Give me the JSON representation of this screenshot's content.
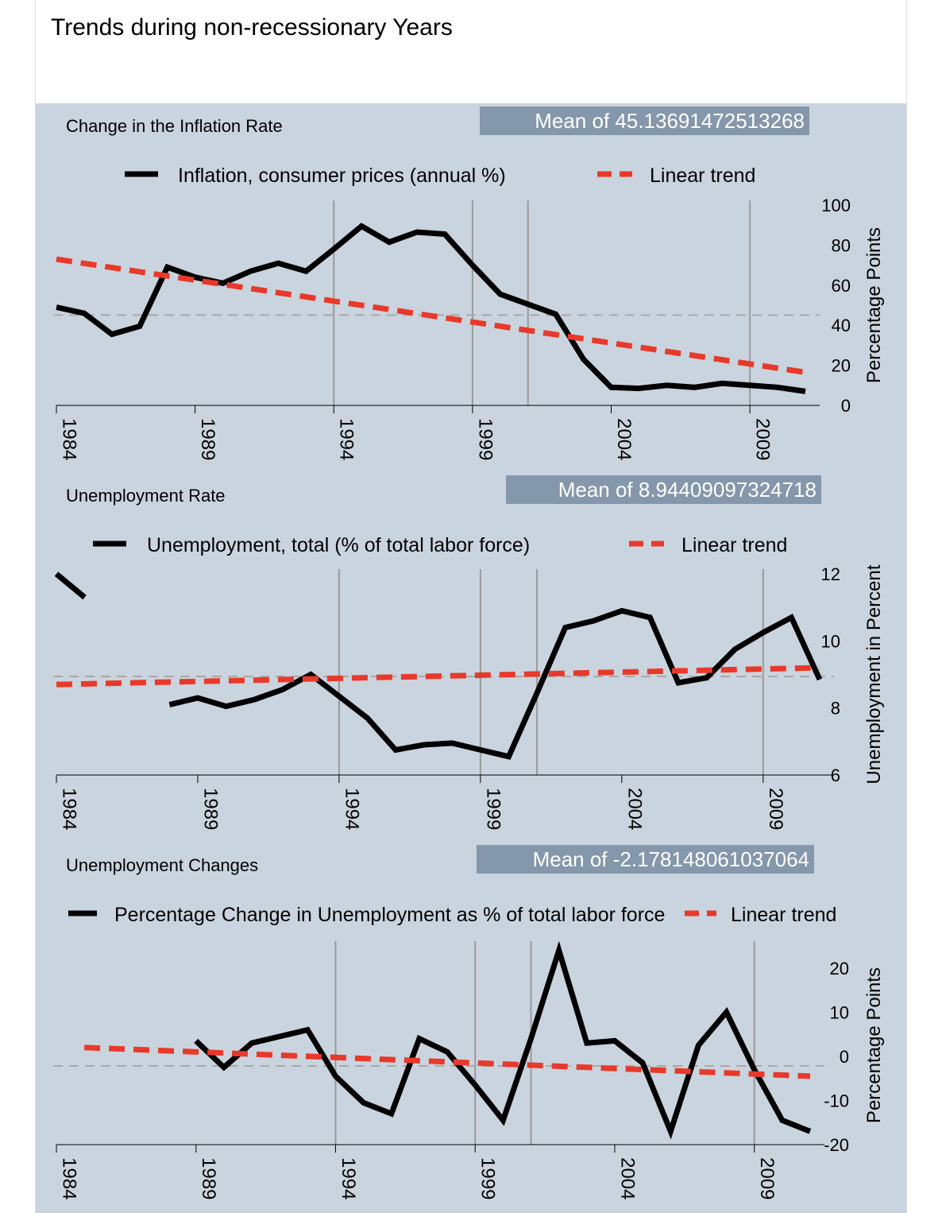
{
  "page_title": "Trends during non-recessionary Years",
  "colors": {
    "panel_bg": "#cad4de",
    "series": "#000000",
    "trend": "#e8392a",
    "mean_box": "#8497ab",
    "grid": "#999999",
    "mean_line": "#a8a8a8"
  },
  "chart_data": [
    {
      "type": "line",
      "title": "Change in the Inflation Rate",
      "mean_label": "Mean of 45.13691472513268",
      "ylabel": "Percentage Points",
      "legend": [
        "Inflation, consumer prices (annual %)",
        "Linear trend"
      ],
      "xlim": [
        1984,
        2011
      ],
      "ylim": [
        0,
        100
      ],
      "yticks": [
        0,
        20,
        40,
        60,
        80,
        100
      ],
      "xticks": [
        1984,
        1989,
        1994,
        1999,
        2004,
        2009
      ],
      "vlines": [
        1994,
        1999,
        2001,
        2009
      ],
      "mean_value": 45.1,
      "trend": {
        "x": [
          1984,
          2011
        ],
        "y": [
          73,
          16.5
        ]
      },
      "series": [
        {
          "name": "Inflation, consumer prices (annual %)",
          "segments": [
            {
              "x": [
                1984,
                1985,
                1986,
                1987,
                1988,
                1989,
                1990,
                1991,
                1992,
                1993,
                1994,
                1995,
                1996,
                1997,
                1998,
                1999,
                2000,
                2001,
                2002,
                2003,
                2004,
                2005,
                2006,
                2007,
                2008,
                2009,
                2010,
                2011
              ],
              "y": [
                49,
                46,
                35.5,
                39.5,
                69,
                64,
                61,
                67,
                71,
                67,
                78,
                89.5,
                81.5,
                86.5,
                85.5,
                70,
                55.5,
                50.5,
                45.5,
                23,
                9,
                8.5,
                10,
                9,
                11,
                10,
                9,
                7
              ]
            }
          ]
        }
      ]
    },
    {
      "type": "line",
      "title": "Unemployment Rate",
      "mean_label": "Mean of 8.94409097324718",
      "ylabel": "Unemployment in Percent",
      "legend": [
        "Unemployment, total (% of total labor force)",
        "Linear trend"
      ],
      "xlim": [
        1984,
        2011
      ],
      "ylim": [
        6,
        12
      ],
      "yticks": [
        6,
        8,
        10,
        12
      ],
      "xticks": [
        1984,
        1989,
        1994,
        1999,
        2004,
        2009
      ],
      "vlines": [
        1994,
        1999,
        2001,
        2009
      ],
      "mean_value": 8.94,
      "trend": {
        "x": [
          1984,
          2011
        ],
        "y": [
          8.7,
          9.2
        ]
      },
      "series": [
        {
          "name": "Unemployment, total (% of total labor force)",
          "segments": [
            {
              "x": [
                1984,
                1985
              ],
              "y": [
                12,
                11.3
              ]
            },
            {
              "x": [
                1988,
                1989,
                1990,
                1991,
                1992,
                1993,
                1994,
                1995,
                1996,
                1997,
                1998,
                1999,
                2000,
                2001,
                2002,
                2003,
                2004,
                2005,
                2006,
                2007,
                2008,
                2009,
                2010,
                2011
              ],
              "y": [
                8.1,
                8.3,
                8.05,
                8.25,
                8.55,
                9,
                8.35,
                7.7,
                6.75,
                6.9,
                6.95,
                6.75,
                6.55,
                8.45,
                10.4,
                10.6,
                10.9,
                10.7,
                8.75,
                8.9,
                9.75,
                10.25,
                10.7,
                8.85
              ]
            }
          ]
        }
      ]
    },
    {
      "type": "line",
      "title": "Unemployment Changes",
      "mean_label": "Mean of -2.178148061037064",
      "ylabel": "Percentage Points",
      "legend": [
        "Percentage Change in Unemployment as % of total labor force",
        "Linear trend"
      ],
      "xlim": [
        1984,
        2011
      ],
      "ylim": [
        -20,
        25
      ],
      "yticks": [
        -20,
        -10,
        0,
        10,
        20
      ],
      "xticks": [
        1984,
        1989,
        1994,
        1999,
        2004,
        2009
      ],
      "vlines": [
        1994,
        1999,
        2001,
        2009
      ],
      "mean_value": -2.18,
      "trend": {
        "x": [
          1985,
          2011
        ],
        "y": [
          2,
          -4.5
        ]
      },
      "series": [
        {
          "name": "Percentage Change in Unemployment as % of total labor force",
          "segments": [
            {
              "x": [
                1989,
                1990,
                1991,
                1992,
                1993,
                1994,
                1995,
                1996,
                1997,
                1998,
                1999,
                2000,
                2001,
                2002,
                2003,
                2004,
                2005,
                2006,
                2007,
                2008,
                2009,
                2010,
                2011
              ],
              "y": [
                3.5,
                -2.5,
                3,
                4.5,
                6,
                -4.5,
                -10.5,
                -13,
                4,
                1,
                -6.5,
                -14.5,
                4,
                24,
                3,
                3.5,
                -1.5,
                -17,
                2.5,
                10,
                -3,
                -14.5,
                -17
              ]
            }
          ]
        }
      ]
    }
  ]
}
